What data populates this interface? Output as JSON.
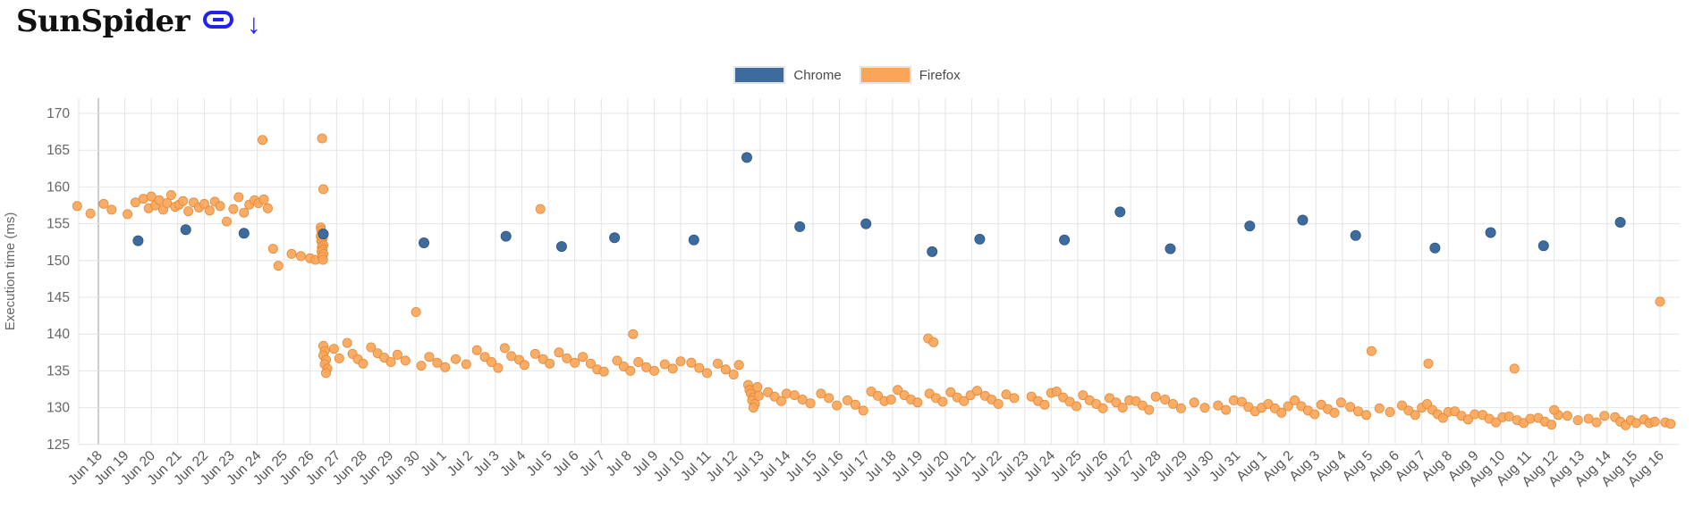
{
  "title": "SunSpider",
  "icons": {
    "permalink": "chain-link",
    "down_arrow": "↓",
    "icon_color": "#2222EE"
  },
  "colors": {
    "chrome": "#3D6B9E",
    "chrome_stroke": "#2F5580",
    "firefox": "#FBA558",
    "firefox_stroke": "#E08A3C",
    "grid": "#E4E4E4",
    "first_gridline": "#9A9A9A",
    "tick_text": "#666666",
    "x_label_text": "#555555",
    "legend_text": "#4A4A4A"
  },
  "legend": [
    {
      "label": "Chrome"
    },
    {
      "label": "Firefox"
    }
  ],
  "chart_data": {
    "type": "scatter",
    "title": "SunSpider",
    "xlabel": "",
    "ylabel": "Execution time (ms)",
    "ylim": [
      125,
      172
    ],
    "yticks": [
      125,
      130,
      135,
      140,
      145,
      150,
      155,
      160,
      165,
      170
    ],
    "grid": true,
    "legend_position": "top-center",
    "x_units": "day offset from Jun 18 tick (fractional = intra-day time)",
    "x_tick_labels": [
      "Jun 18",
      "Jun 19",
      "Jun 20",
      "Jun 21",
      "Jun 22",
      "Jun 23",
      "Jun 24",
      "Jun 25",
      "Jun 26",
      "Jun 27",
      "Jun 28",
      "Jun 29",
      "Jun 30",
      "Jul 1",
      "Jul 2",
      "Jul 3",
      "Jul 4",
      "Jul 5",
      "Jul 6",
      "Jul 7",
      "Jul 8",
      "Jul 9",
      "Jul 10",
      "Jul 11",
      "Jul 12",
      "Jul 13",
      "Jul 14",
      "Jul 15",
      "Jul 16",
      "Jul 17",
      "Jul 18",
      "Jul 19",
      "Jul 20",
      "Jul 21",
      "Jul 22",
      "Jul 23",
      "Jul 24",
      "Jul 25",
      "Jul 26",
      "Jul 27",
      "Jul 28",
      "Jul 29",
      "Jul 30",
      "Jul 31",
      "Aug 1",
      "Aug 2",
      "Aug 3",
      "Aug 4",
      "Aug 5",
      "Aug 6",
      "Aug 7",
      "Aug 8",
      "Aug 9",
      "Aug 10",
      "Aug 11",
      "Aug 12",
      "Aug 13",
      "Aug 14",
      "Aug 15",
      "Aug 16"
    ],
    "series": [
      {
        "name": "Chrome",
        "points": [
          [
            1.5,
            152.7
          ],
          [
            3.3,
            154.2
          ],
          [
            5.5,
            153.7
          ],
          [
            8.5,
            153.6
          ],
          [
            12.3,
            152.4
          ],
          [
            15.4,
            153.3
          ],
          [
            17.5,
            151.9
          ],
          [
            19.5,
            153.1
          ],
          [
            22.5,
            152.8
          ],
          [
            24.5,
            164.0
          ],
          [
            26.5,
            154.6
          ],
          [
            29.0,
            155.0
          ],
          [
            31.5,
            151.2
          ],
          [
            33.3,
            152.9
          ],
          [
            36.5,
            152.8
          ],
          [
            38.6,
            156.6
          ],
          [
            40.5,
            151.6
          ],
          [
            43.5,
            154.7
          ],
          [
            45.5,
            155.5
          ],
          [
            47.5,
            153.4
          ],
          [
            50.5,
            151.7
          ],
          [
            52.6,
            153.8
          ],
          [
            54.6,
            152.0
          ],
          [
            57.5,
            155.2
          ]
        ]
      },
      {
        "name": "Firefox",
        "points": [
          [
            -0.8,
            157.4
          ],
          [
            -0.3,
            156.4
          ],
          [
            0.2,
            157.7
          ],
          [
            0.5,
            156.9
          ],
          [
            1.1,
            156.3
          ],
          [
            1.4,
            157.9
          ],
          [
            1.7,
            158.4
          ],
          [
            1.9,
            157.1
          ],
          [
            2.0,
            158.7
          ],
          [
            2.15,
            157.5
          ],
          [
            2.3,
            158.2
          ],
          [
            2.45,
            156.9
          ],
          [
            2.6,
            157.8
          ],
          [
            2.75,
            158.9
          ],
          [
            2.9,
            157.3
          ],
          [
            3.05,
            157.6
          ],
          [
            3.2,
            158.1
          ],
          [
            3.4,
            156.7
          ],
          [
            3.6,
            157.9
          ],
          [
            3.8,
            157.2
          ],
          [
            4.0,
            157.7
          ],
          [
            4.2,
            156.8
          ],
          [
            4.4,
            158.0
          ],
          [
            4.6,
            157.4
          ],
          [
            4.85,
            155.3
          ],
          [
            5.1,
            157.0
          ],
          [
            5.3,
            158.6
          ],
          [
            5.5,
            156.5
          ],
          [
            5.7,
            157.6
          ],
          [
            5.9,
            158.2
          ],
          [
            6.05,
            157.8
          ],
          [
            6.2,
            166.4
          ],
          [
            6.25,
            158.3
          ],
          [
            6.4,
            157.1
          ],
          [
            6.6,
            151.6
          ],
          [
            6.8,
            149.3
          ],
          [
            7.3,
            150.9
          ],
          [
            7.65,
            150.6
          ],
          [
            8.0,
            150.3
          ],
          [
            8.2,
            150.1
          ],
          [
            8.45,
            166.6
          ],
          [
            8.5,
            159.7
          ],
          [
            8.4,
            154.5
          ],
          [
            8.42,
            154.1
          ],
          [
            8.45,
            153.7
          ],
          [
            8.4,
            153.3
          ],
          [
            8.48,
            153.0
          ],
          [
            8.42,
            152.7
          ],
          [
            8.45,
            152.4
          ],
          [
            8.5,
            152.1
          ],
          [
            8.44,
            151.8
          ],
          [
            8.47,
            151.5
          ],
          [
            8.43,
            151.2
          ],
          [
            8.5,
            150.9
          ],
          [
            8.46,
            150.5
          ],
          [
            8.49,
            150.1
          ],
          [
            8.5,
            138.4
          ],
          [
            8.55,
            137.7
          ],
          [
            8.5,
            137.1
          ],
          [
            8.6,
            136.5
          ],
          [
            8.55,
            135.9
          ],
          [
            8.65,
            135.3
          ],
          [
            8.6,
            134.7
          ],
          [
            8.9,
            138.0
          ],
          [
            9.1,
            136.7
          ],
          [
            9.4,
            138.8
          ],
          [
            9.6,
            137.3
          ],
          [
            9.8,
            136.6
          ],
          [
            10.0,
            136.0
          ],
          [
            10.3,
            138.2
          ],
          [
            10.55,
            137.4
          ],
          [
            10.8,
            136.8
          ],
          [
            11.05,
            136.2
          ],
          [
            11.3,
            137.2
          ],
          [
            11.6,
            136.4
          ],
          [
            12.0,
            143.0
          ],
          [
            12.2,
            135.7
          ],
          [
            12.5,
            136.9
          ],
          [
            12.8,
            136.1
          ],
          [
            13.1,
            135.5
          ],
          [
            13.5,
            136.6
          ],
          [
            13.9,
            135.9
          ],
          [
            14.3,
            137.8
          ],
          [
            14.6,
            136.9
          ],
          [
            14.85,
            136.2
          ],
          [
            15.1,
            135.4
          ],
          [
            15.35,
            138.1
          ],
          [
            15.6,
            137.0
          ],
          [
            15.9,
            136.5
          ],
          [
            16.1,
            135.8
          ],
          [
            16.7,
            157.0
          ],
          [
            16.5,
            137.3
          ],
          [
            16.8,
            136.6
          ],
          [
            17.05,
            136.0
          ],
          [
            17.4,
            137.5
          ],
          [
            17.7,
            136.7
          ],
          [
            18.0,
            136.1
          ],
          [
            18.3,
            136.9
          ],
          [
            18.6,
            136.0
          ],
          [
            18.85,
            135.2
          ],
          [
            19.1,
            134.9
          ],
          [
            20.2,
            140.0
          ],
          [
            19.6,
            136.4
          ],
          [
            19.85,
            135.6
          ],
          [
            20.1,
            135.0
          ],
          [
            20.4,
            136.2
          ],
          [
            20.7,
            135.5
          ],
          [
            21.0,
            135.0
          ],
          [
            21.4,
            135.9
          ],
          [
            21.7,
            135.3
          ],
          [
            22.0,
            136.3
          ],
          [
            22.4,
            136.1
          ],
          [
            22.7,
            135.4
          ],
          [
            23.0,
            134.7
          ],
          [
            23.4,
            136.0
          ],
          [
            23.7,
            135.2
          ],
          [
            24.0,
            134.5
          ],
          [
            24.2,
            135.8
          ],
          [
            24.55,
            133.1
          ],
          [
            24.6,
            132.4
          ],
          [
            24.65,
            131.9
          ],
          [
            24.75,
            131.4
          ],
          [
            24.7,
            131.0
          ],
          [
            24.8,
            130.5
          ],
          [
            24.75,
            130.0
          ],
          [
            24.9,
            132.8
          ],
          [
            24.95,
            131.6
          ],
          [
            25.3,
            132.1
          ],
          [
            25.55,
            131.5
          ],
          [
            25.8,
            130.9
          ],
          [
            26.0,
            131.9
          ],
          [
            26.3,
            131.7
          ],
          [
            26.6,
            131.1
          ],
          [
            26.9,
            130.6
          ],
          [
            27.3,
            131.9
          ],
          [
            27.6,
            131.3
          ],
          [
            27.9,
            130.3
          ],
          [
            28.3,
            131.0
          ],
          [
            28.6,
            130.4
          ],
          [
            28.9,
            129.6
          ],
          [
            29.2,
            132.2
          ],
          [
            29.45,
            131.6
          ],
          [
            29.7,
            130.9
          ],
          [
            29.95,
            131.1
          ],
          [
            30.2,
            132.4
          ],
          [
            30.45,
            131.7
          ],
          [
            30.7,
            131.1
          ],
          [
            30.95,
            130.7
          ],
          [
            31.35,
            139.4
          ],
          [
            31.55,
            138.9
          ],
          [
            31.4,
            131.9
          ],
          [
            31.65,
            131.3
          ],
          [
            31.9,
            130.8
          ],
          [
            32.2,
            132.1
          ],
          [
            32.45,
            131.4
          ],
          [
            32.7,
            130.9
          ],
          [
            32.95,
            131.7
          ],
          [
            33.2,
            132.3
          ],
          [
            33.5,
            131.6
          ],
          [
            33.75,
            131.1
          ],
          [
            34.0,
            130.5
          ],
          [
            34.3,
            131.8
          ],
          [
            34.6,
            131.3
          ],
          [
            35.25,
            131.5
          ],
          [
            35.5,
            130.9
          ],
          [
            35.75,
            130.4
          ],
          [
            36.0,
            132.0
          ],
          [
            36.2,
            132.2
          ],
          [
            36.45,
            131.4
          ],
          [
            36.7,
            130.8
          ],
          [
            36.95,
            130.2
          ],
          [
            37.2,
            131.7
          ],
          [
            37.45,
            131.0
          ],
          [
            37.7,
            130.5
          ],
          [
            37.95,
            129.9
          ],
          [
            38.2,
            131.3
          ],
          [
            38.45,
            130.7
          ],
          [
            38.7,
            130.0
          ],
          [
            38.95,
            131.0
          ],
          [
            39.2,
            130.9
          ],
          [
            39.45,
            130.3
          ],
          [
            39.7,
            129.7
          ],
          [
            39.95,
            131.5
          ],
          [
            40.3,
            131.1
          ],
          [
            40.6,
            130.5
          ],
          [
            40.9,
            129.9
          ],
          [
            41.4,
            130.7
          ],
          [
            41.8,
            130.0
          ],
          [
            42.3,
            130.3
          ],
          [
            42.6,
            129.7
          ],
          [
            42.9,
            131.0
          ],
          [
            43.2,
            130.8
          ],
          [
            43.45,
            130.1
          ],
          [
            43.7,
            129.5
          ],
          [
            43.95,
            130.0
          ],
          [
            44.2,
            130.5
          ],
          [
            44.45,
            129.9
          ],
          [
            44.7,
            129.3
          ],
          [
            44.95,
            130.2
          ],
          [
            45.2,
            131.0
          ],
          [
            45.45,
            130.2
          ],
          [
            45.7,
            129.6
          ],
          [
            45.95,
            129.1
          ],
          [
            46.2,
            130.4
          ],
          [
            46.45,
            129.8
          ],
          [
            46.7,
            129.3
          ],
          [
            46.95,
            130.7
          ],
          [
            47.3,
            130.1
          ],
          [
            47.6,
            129.5
          ],
          [
            47.9,
            129.0
          ],
          [
            48.1,
            137.7
          ],
          [
            48.4,
            129.9
          ],
          [
            48.8,
            129.4
          ],
          [
            50.25,
            136.0
          ],
          [
            49.25,
            130.3
          ],
          [
            49.5,
            129.6
          ],
          [
            49.75,
            129.0
          ],
          [
            50.0,
            130.0
          ],
          [
            50.2,
            130.5
          ],
          [
            50.4,
            129.7
          ],
          [
            50.6,
            129.1
          ],
          [
            50.8,
            128.6
          ],
          [
            51.0,
            129.4
          ],
          [
            51.25,
            129.5
          ],
          [
            51.5,
            128.9
          ],
          [
            51.75,
            128.4
          ],
          [
            52.0,
            129.1
          ],
          [
            53.5,
            135.3
          ],
          [
            52.3,
            129.0
          ],
          [
            52.55,
            128.5
          ],
          [
            52.8,
            128.0
          ],
          [
            53.05,
            128.7
          ],
          [
            53.3,
            128.8
          ],
          [
            53.6,
            128.3
          ],
          [
            53.85,
            127.9
          ],
          [
            54.1,
            128.5
          ],
          [
            54.4,
            128.6
          ],
          [
            54.65,
            128.1
          ],
          [
            54.9,
            127.7
          ],
          [
            55.15,
            129.0
          ],
          [
            55.0,
            129.7
          ],
          [
            55.5,
            128.9
          ],
          [
            55.9,
            128.3
          ],
          [
            56.3,
            128.5
          ],
          [
            56.6,
            128.0
          ],
          [
            56.9,
            128.9
          ],
          [
            57.3,
            128.7
          ],
          [
            57.5,
            128.1
          ],
          [
            57.7,
            127.6
          ],
          [
            57.9,
            128.3
          ],
          [
            58.1,
            127.9
          ],
          [
            58.4,
            128.4
          ],
          [
            58.6,
            127.9
          ],
          [
            58.8,
            128.1
          ],
          [
            59.0,
            144.4
          ],
          [
            59.2,
            128.0
          ],
          [
            59.4,
            127.8
          ]
        ]
      }
    ]
  }
}
